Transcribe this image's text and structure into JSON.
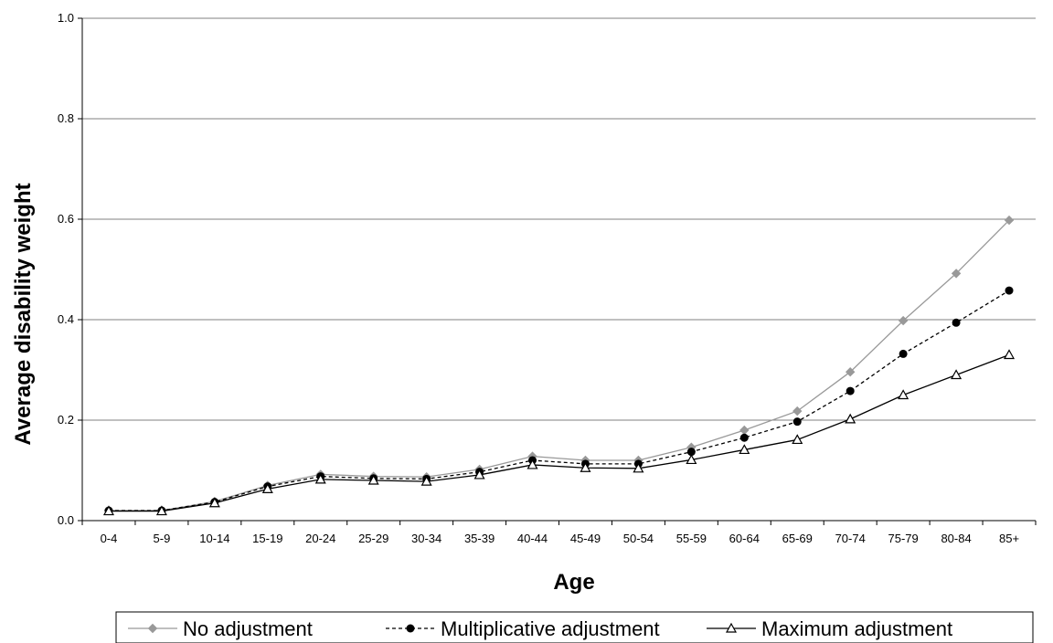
{
  "chart_data": {
    "type": "line",
    "xlabel": "Age",
    "ylabel": "Average disability weight",
    "ylim": [
      0,
      1.0
    ],
    "yticks": [
      "0.0",
      "0.2",
      "0.4",
      "0.6",
      "0.8",
      "1.0"
    ],
    "grid": true,
    "legend_position": "bottom",
    "categories": [
      "0-4",
      "5-9",
      "10-14",
      "15-19",
      "20-24",
      "25-29",
      "30-34",
      "35-39",
      "40-44",
      "45-49",
      "50-54",
      "55-59",
      "60-64",
      "65-69",
      "70-74",
      "75-79",
      "80-84",
      "85+"
    ],
    "series": [
      {
        "name": "No adjustment",
        "color": "#999999",
        "marker": "diamond",
        "line": "solid",
        "values": [
          0.02,
          0.02,
          0.038,
          0.07,
          0.092,
          0.088,
          0.087,
          0.102,
          0.128,
          0.12,
          0.12,
          0.146,
          0.18,
          0.218,
          0.296,
          0.398,
          0.492,
          0.598
        ]
      },
      {
        "name": "Multiplicative adjustment",
        "color": "#000000",
        "marker": "circle",
        "line": "dashed",
        "values": [
          0.02,
          0.02,
          0.037,
          0.068,
          0.088,
          0.084,
          0.083,
          0.097,
          0.12,
          0.113,
          0.113,
          0.137,
          0.165,
          0.197,
          0.258,
          0.332,
          0.394,
          0.458
        ]
      },
      {
        "name": "Maximum adjustment",
        "color": "#000000",
        "marker": "triangle",
        "line": "solid",
        "values": [
          0.019,
          0.019,
          0.035,
          0.063,
          0.082,
          0.08,
          0.078,
          0.091,
          0.111,
          0.105,
          0.104,
          0.121,
          0.141,
          0.161,
          0.202,
          0.25,
          0.29,
          0.33
        ]
      }
    ]
  }
}
